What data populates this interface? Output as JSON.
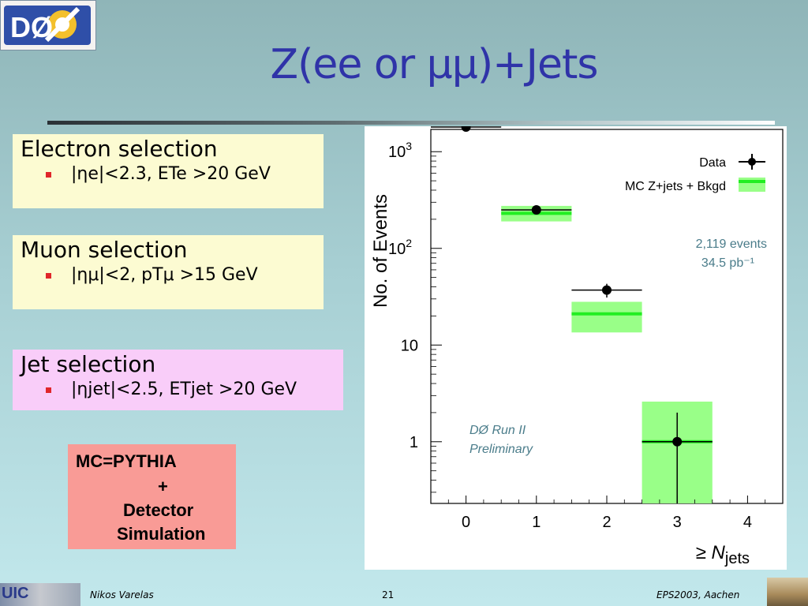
{
  "slide": {
    "title": "Z(ee or μμ)+Jets",
    "logo_text": "DØ",
    "selections": {
      "electron": {
        "heading": "Electron selection",
        "bullet": "|ηe|<2.3, ETe >20 GeV"
      },
      "muon": {
        "heading": "Muon selection",
        "bullet": "|ημ|<2, pTμ >15 GeV"
      },
      "jet": {
        "heading": "Jet selection",
        "bullet": "|ηjet|<2.5, ETjet >20 GeV"
      }
    },
    "mc_box": {
      "line1": "MC=PYTHIA",
      "line2": "+",
      "line3": "Detector",
      "line4": "Simulation"
    },
    "footer": {
      "author": "Nikos Varelas",
      "page": "21",
      "conference": "EPS2003, Aachen",
      "uic_label": "UIC"
    },
    "colors": {
      "title": "#2f33a8",
      "mc_band": "#99ff88",
      "mc_line": "#22ee22",
      "bullet": "#e0262a"
    }
  },
  "chart_data": {
    "type": "scatter",
    "xlabel": "≥ Njets",
    "ylabel": "No. of Events",
    "xlim": [
      -0.5,
      4.5
    ],
    "ylog": true,
    "ylim": [
      0.23,
      1700
    ],
    "xticks": [
      "0",
      "1",
      "2",
      "3",
      "4"
    ],
    "yticks": [
      {
        "value": 1,
        "label": "1"
      },
      {
        "value": 10,
        "label": "10"
      },
      {
        "value": 100,
        "label": "10^2"
      },
      {
        "value": 1000,
        "label": "10^3"
      }
    ],
    "series": [
      {
        "name": "Data",
        "points": [
          {
            "x": 0,
            "y": 1800,
            "xerr": 0.5,
            "yerr": [
              0,
              0
            ]
          },
          {
            "x": 1,
            "y": 250,
            "xerr": 0.5,
            "yerr": [
              0,
              0
            ]
          },
          {
            "x": 2,
            "y": 37,
            "xerr": 0.5,
            "yerr": [
              31,
              43
            ]
          },
          {
            "x": 3,
            "y": 1,
            "xerr": 0.5,
            "yerr": [
              0.23,
              2
            ]
          }
        ]
      },
      {
        "name": "MC Z+jets + Bkgd",
        "bands": [
          {
            "x": 1,
            "central": 230,
            "low": 190,
            "high": 275
          },
          {
            "x": 2,
            "central": 21,
            "low": 13.5,
            "high": 28
          },
          {
            "x": 3,
            "central": 1,
            "low": 0.23,
            "high": 2.6
          }
        ]
      }
    ],
    "annotations": {
      "events": "2,119 events",
      "lumi": "34.5 pb⁻¹",
      "experiment": "DØ   Run II",
      "status": "Preliminary"
    },
    "legend_placement": "top-right"
  }
}
